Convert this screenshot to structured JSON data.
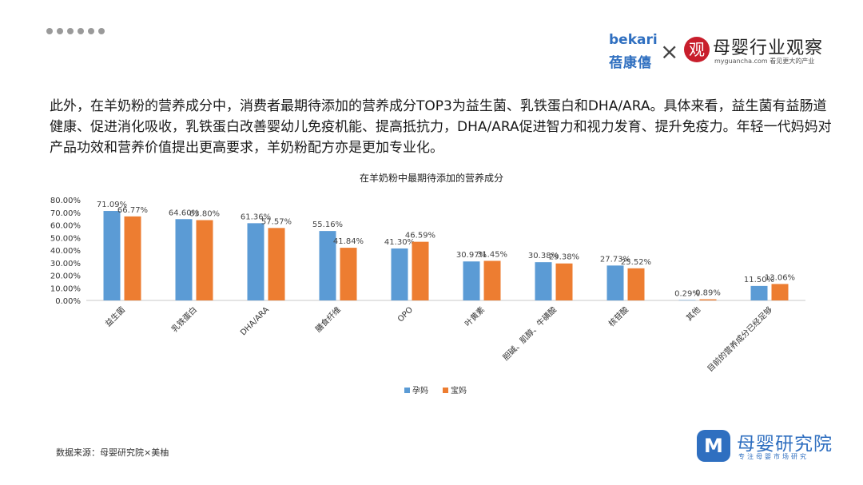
{
  "header": {
    "logo_left_en": "bekari",
    "logo_left_cn": "蓓康僖",
    "times_sign": "×",
    "logo_mark_char": "观",
    "brand_cn": "母婴行业观察",
    "brand_en": "myguancha.com 看见更大的产业"
  },
  "paragraph": "此外，在羊奶粉的营养成分中，消费者最期待添加的营养成分TOP3为益生菌、乳铁蛋白和DHA/ARA。具体来看，益生菌有益肠道健康、促进消化吸收，乳铁蛋白改善婴幼儿免疫机能、提高抵抗力，DHA/ARA促进智力和视力发育、提升免疫力。年轻一代妈妈对产品功效和营养价值提出更高要求，羊奶粉配方亦是更加专业化。",
  "chart_data": {
    "type": "bar",
    "title": "在羊奶粉中最期待添加的营养成分",
    "categories": [
      "益生菌",
      "乳铁蛋白",
      "DHA/ARA",
      "膳食纤维",
      "OPO",
      "叶黄素",
      "胆碱、肌醇、牛磺酸",
      "核苷酸",
      "其他",
      "目前的营养成分已经足够"
    ],
    "series": [
      {
        "name": "孕妈",
        "color": "#5b9bd5",
        "values": [
          71.09,
          64.6,
          61.36,
          55.16,
          41.3,
          30.97,
          30.38,
          27.73,
          0.29,
          11.5
        ],
        "labels": [
          "71.09%",
          "64.60%",
          "61.36%",
          "55.16%",
          "41.30%",
          "30.97%",
          "30.38%",
          "27.73%",
          "0.29%",
          "11.50%"
        ]
      },
      {
        "name": "宝妈",
        "color": "#ed7d31",
        "values": [
          66.77,
          63.8,
          57.57,
          41.84,
          46.59,
          31.45,
          29.38,
          25.52,
          0.89,
          13.06
        ],
        "labels": [
          "66.77%",
          "63.80%",
          "57.57%",
          "41.84%",
          "46.59%",
          "31.45%",
          "29.38%",
          "25.52%",
          "0.89%",
          "13.06%"
        ]
      }
    ],
    "ylim": [
      0,
      80
    ],
    "yticks": [
      0,
      10,
      20,
      30,
      40,
      50,
      60,
      70,
      80
    ],
    "ytick_labels": [
      "0.00%",
      "10.00%",
      "20.00%",
      "30.00%",
      "40.00%",
      "50.00%",
      "60.00%",
      "70.00%",
      "80.00%"
    ],
    "grid": false,
    "legend": "bottom"
  },
  "footer": {
    "source": "数据来源：母婴研究院×美柚",
    "logo_mark": "M",
    "logo_name": "母婴研究院",
    "logo_slogan": "专注母婴市场研究"
  }
}
